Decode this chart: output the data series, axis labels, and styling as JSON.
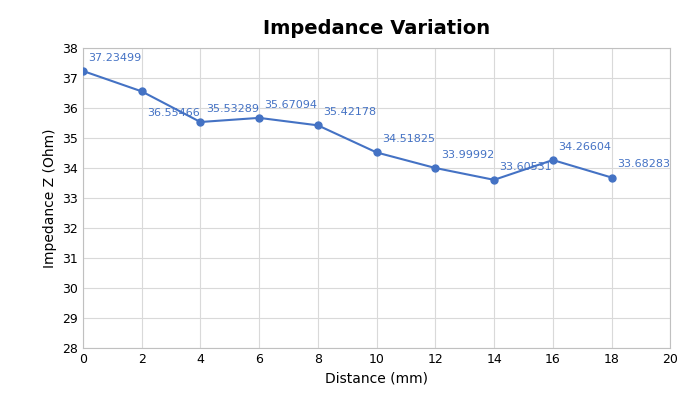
{
  "x": [
    0,
    2,
    4,
    6,
    8,
    10,
    12,
    14,
    16,
    18
  ],
  "y": [
    37.23499,
    36.55466,
    35.53289,
    35.67094,
    35.42178,
    34.51825,
    33.99992,
    33.60531,
    34.26604,
    33.68283
  ],
  "labels": [
    "37.23499",
    "36.55466",
    "35.53289",
    "35.67094",
    "35.42178",
    "34.51825",
    "33.99992",
    "33.60531",
    "34.26604",
    "33.68283"
  ],
  "label_offsets_x": [
    4,
    4,
    4,
    4,
    4,
    4,
    4,
    4,
    4,
    4
  ],
  "label_offsets_y": [
    6,
    -12,
    6,
    6,
    6,
    6,
    6,
    6,
    6,
    6
  ],
  "title": "Impedance Variation",
  "xlabel": "Distance (mm)",
  "ylabel": "Impedance Z (Ohm)",
  "xlim": [
    0,
    20
  ],
  "ylim": [
    28,
    38
  ],
  "xticks": [
    0,
    2,
    4,
    6,
    8,
    10,
    12,
    14,
    16,
    18,
    20
  ],
  "yticks": [
    28,
    29,
    30,
    31,
    32,
    33,
    34,
    35,
    36,
    37,
    38
  ],
  "line_color": "#4472C4",
  "marker_color": "#4472C4",
  "background_color": "#FFFFFF",
  "plot_bg_color": "#FFFFFF",
  "grid_color": "#D9D9D9",
  "spine_color": "#C0C0C0",
  "title_fontsize": 14,
  "label_fontsize": 10,
  "tick_fontsize": 9,
  "annotation_fontsize": 8,
  "line_width": 1.5,
  "marker_size": 5
}
